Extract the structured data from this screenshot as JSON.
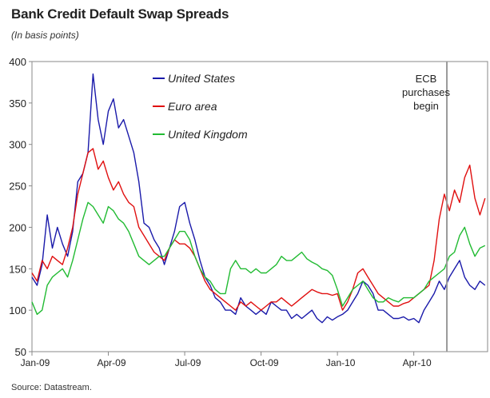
{
  "title": "Bank Credit Default Swap Spreads",
  "subtitle": "(In basis points)",
  "source": "Source: Datastream.",
  "chart_data": {
    "type": "line",
    "ylim": [
      50,
      400
    ],
    "yticks": [
      50,
      100,
      150,
      200,
      250,
      300,
      350,
      400
    ],
    "xlim": [
      0,
      17.9
    ],
    "xticks": [
      {
        "label": "Jan-09",
        "pos": 0
      },
      {
        "label": "Apr-09",
        "pos": 3
      },
      {
        "label": "Jul-09",
        "pos": 6
      },
      {
        "label": "Oct-09",
        "pos": 9
      },
      {
        "label": "Jan-10",
        "pos": 12
      },
      {
        "label": "Apr-10",
        "pos": 15
      }
    ],
    "grid": false,
    "legend_position": "top-left",
    "annotation": {
      "lines": [
        "ECB",
        "purchases",
        "begin"
      ],
      "x": 16.3
    },
    "series": [
      {
        "name": "United States",
        "color": "#1a1aaa",
        "x": [
          0,
          0.2,
          0.4,
          0.6,
          0.8,
          1.0,
          1.2,
          1.4,
          1.6,
          1.8,
          2.0,
          2.2,
          2.4,
          2.6,
          2.8,
          3.0,
          3.2,
          3.4,
          3.6,
          3.8,
          4.0,
          4.2,
          4.4,
          4.6,
          4.8,
          5.0,
          5.2,
          5.4,
          5.6,
          5.8,
          6.0,
          6.2,
          6.4,
          6.6,
          6.8,
          7.0,
          7.2,
          7.4,
          7.6,
          7.8,
          8.0,
          8.2,
          8.4,
          8.6,
          8.8,
          9.0,
          9.2,
          9.4,
          9.6,
          9.8,
          10.0,
          10.2,
          10.4,
          10.6,
          10.8,
          11.0,
          11.2,
          11.4,
          11.6,
          11.8,
          12.0,
          12.2,
          12.4,
          12.6,
          12.8,
          13.0,
          13.2,
          13.4,
          13.6,
          13.8,
          14.0,
          14.2,
          14.4,
          14.6,
          14.8,
          15.0,
          15.2,
          15.4,
          15.6,
          15.8,
          16.0,
          16.2,
          16.4,
          16.6,
          16.8,
          17.0,
          17.2,
          17.4,
          17.6,
          17.8
        ],
        "values": [
          140,
          130,
          155,
          215,
          175,
          200,
          180,
          165,
          195,
          255,
          265,
          290,
          385,
          330,
          300,
          340,
          355,
          320,
          330,
          310,
          290,
          255,
          205,
          200,
          185,
          175,
          155,
          175,
          195,
          225,
          230,
          205,
          185,
          160,
          140,
          130,
          115,
          110,
          100,
          100,
          95,
          115,
          105,
          100,
          95,
          100,
          95,
          110,
          105,
          100,
          100,
          90,
          95,
          90,
          95,
          100,
          90,
          85,
          92,
          88,
          92,
          95,
          100,
          110,
          120,
          135,
          130,
          120,
          100,
          100,
          95,
          90,
          90,
          92,
          88,
          90,
          85,
          100,
          110,
          120,
          135,
          125,
          140,
          150,
          160,
          140,
          130,
          125,
          135,
          130
        ]
      },
      {
        "name": "Euro area",
        "color": "#e01010",
        "x": [
          0,
          0.2,
          0.4,
          0.6,
          0.8,
          1.0,
          1.2,
          1.4,
          1.6,
          1.8,
          2.0,
          2.2,
          2.4,
          2.6,
          2.8,
          3.0,
          3.2,
          3.4,
          3.6,
          3.8,
          4.0,
          4.2,
          4.4,
          4.6,
          4.8,
          5.0,
          5.2,
          5.4,
          5.6,
          5.8,
          6.0,
          6.2,
          6.4,
          6.6,
          6.8,
          7.0,
          7.2,
          7.4,
          7.6,
          7.8,
          8.0,
          8.2,
          8.4,
          8.6,
          8.8,
          9.0,
          9.2,
          9.4,
          9.6,
          9.8,
          10.0,
          10.2,
          10.4,
          10.6,
          10.8,
          11.0,
          11.2,
          11.4,
          11.6,
          11.8,
          12.0,
          12.2,
          12.4,
          12.6,
          12.8,
          13.0,
          13.2,
          13.4,
          13.6,
          13.8,
          14.0,
          14.2,
          14.4,
          14.6,
          14.8,
          15.0,
          15.2,
          15.4,
          15.6,
          15.8,
          16.0,
          16.2,
          16.4,
          16.6,
          16.8,
          17.0,
          17.2,
          17.4,
          17.6,
          17.8
        ],
        "values": [
          145,
          135,
          160,
          150,
          165,
          160,
          155,
          175,
          200,
          240,
          265,
          290,
          295,
          270,
          280,
          260,
          245,
          255,
          240,
          230,
          225,
          200,
          190,
          180,
          170,
          165,
          160,
          175,
          185,
          180,
          180,
          175,
          165,
          150,
          135,
          125,
          120,
          115,
          110,
          105,
          100,
          110,
          105,
          110,
          105,
          100,
          105,
          110,
          110,
          115,
          110,
          105,
          110,
          115,
          120,
          125,
          122,
          120,
          120,
          118,
          120,
          100,
          110,
          125,
          145,
          150,
          140,
          130,
          120,
          115,
          110,
          105,
          105,
          108,
          110,
          115,
          120,
          125,
          130,
          160,
          210,
          240,
          220,
          245,
          230,
          260,
          275,
          235,
          215,
          235
        ]
      },
      {
        "name": "United Kingdom",
        "color": "#22bb33",
        "x": [
          0,
          0.2,
          0.4,
          0.6,
          0.8,
          1.0,
          1.2,
          1.4,
          1.6,
          1.8,
          2.0,
          2.2,
          2.4,
          2.6,
          2.8,
          3.0,
          3.2,
          3.4,
          3.6,
          3.8,
          4.0,
          4.2,
          4.4,
          4.6,
          4.8,
          5.0,
          5.2,
          5.4,
          5.6,
          5.8,
          6.0,
          6.2,
          6.4,
          6.6,
          6.8,
          7.0,
          7.2,
          7.4,
          7.6,
          7.8,
          8.0,
          8.2,
          8.4,
          8.6,
          8.8,
          9.0,
          9.2,
          9.4,
          9.6,
          9.8,
          10.0,
          10.2,
          10.4,
          10.6,
          10.8,
          11.0,
          11.2,
          11.4,
          11.6,
          11.8,
          12.0,
          12.2,
          12.4,
          12.6,
          12.8,
          13.0,
          13.2,
          13.4,
          13.6,
          13.8,
          14.0,
          14.2,
          14.4,
          14.6,
          14.8,
          15.0,
          15.2,
          15.4,
          15.6,
          15.8,
          16.0,
          16.2,
          16.4,
          16.6,
          16.8,
          17.0,
          17.2,
          17.4,
          17.6,
          17.8
        ],
        "values": [
          110,
          95,
          100,
          130,
          140,
          145,
          150,
          140,
          160,
          185,
          210,
          230,
          225,
          215,
          205,
          225,
          220,
          210,
          205,
          195,
          180,
          165,
          160,
          155,
          160,
          165,
          165,
          175,
          185,
          195,
          195,
          185,
          165,
          150,
          140,
          135,
          125,
          120,
          120,
          150,
          160,
          150,
          150,
          145,
          150,
          145,
          145,
          150,
          155,
          165,
          160,
          160,
          165,
          170,
          162,
          158,
          155,
          150,
          148,
          142,
          125,
          105,
          115,
          125,
          130,
          135,
          125,
          115,
          110,
          110,
          115,
          112,
          110,
          115,
          115,
          115,
          120,
          125,
          135,
          140,
          145,
          150,
          165,
          170,
          190,
          200,
          180,
          165,
          175,
          178
        ]
      }
    ]
  }
}
